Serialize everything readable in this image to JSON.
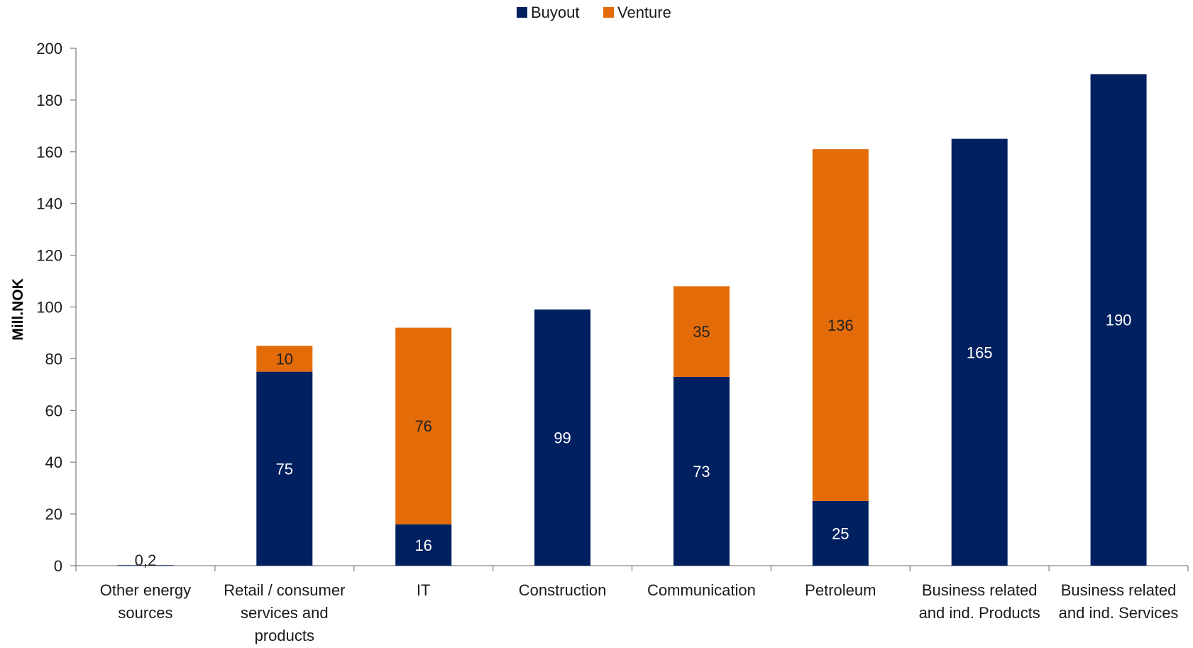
{
  "chart_data": {
    "type": "bar",
    "stacked": true,
    "title": "",
    "xlabel": "",
    "ylabel": "Mill.NOK",
    "ylim": [
      0,
      200
    ],
    "yticks": [
      0,
      20,
      40,
      60,
      80,
      100,
      120,
      140,
      160,
      180,
      200
    ],
    "grid": false,
    "legend_position": "top-center",
    "categories": [
      [
        "Other energy",
        "sources"
      ],
      [
        "Retail / consumer",
        "services and",
        "products"
      ],
      [
        "IT"
      ],
      [
        "Construction"
      ],
      [
        "Communication"
      ],
      [
        "Petroleum"
      ],
      [
        "Business related",
        "and ind. Products"
      ],
      [
        "Business related",
        "and ind. Services"
      ]
    ],
    "series": [
      {
        "name": "Buyout",
        "color": "#002060",
        "values": [
          0.2,
          75,
          16,
          99,
          73,
          25,
          165,
          190
        ],
        "labels": [
          "0,2",
          "75",
          "16",
          "99",
          "73",
          "25",
          "165",
          "190"
        ],
        "label_color": "#ffffff"
      },
      {
        "name": "Venture",
        "color": "#E36C09",
        "values": [
          0,
          10,
          76,
          0,
          35,
          136,
          0,
          0
        ],
        "labels": [
          "",
          "10",
          "76",
          "",
          "35",
          "136",
          "",
          ""
        ],
        "label_color": "#222222"
      }
    ]
  }
}
